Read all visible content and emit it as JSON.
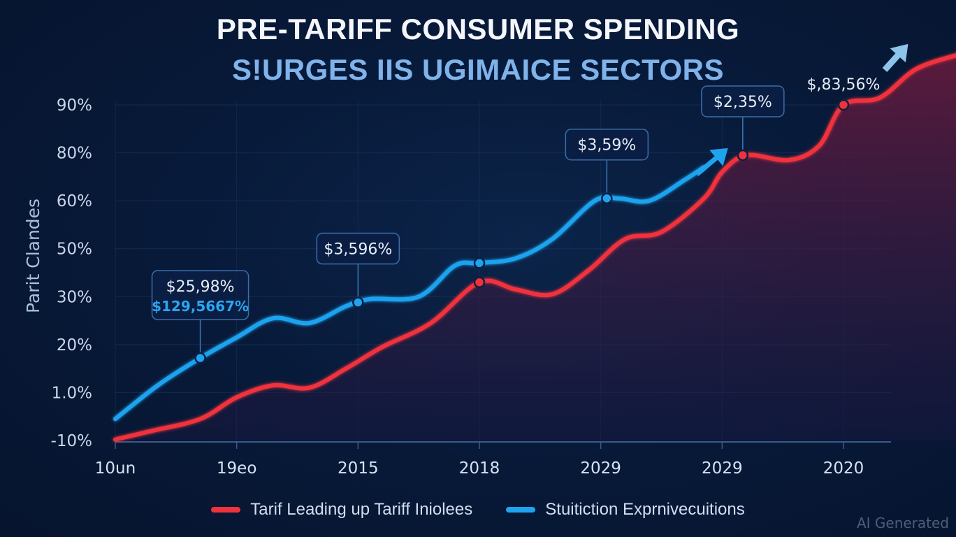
{
  "chart_data": {
    "type": "line",
    "title": "PRE-TARIFF CONSUMER SPENDING",
    "subtitle": "S!URGES IIS UGIMAICE SECTORS",
    "ylabel": "Parit Clandes",
    "xlabel": "",
    "x_tick_labels": [
      "10un",
      "19eo",
      "2015",
      "2018",
      "2029",
      "2029",
      "2020"
    ],
    "y_tick_labels": [
      "-10%",
      "1.0%",
      "20%",
      "30%",
      "50%",
      "60%",
      "80%",
      "90%"
    ],
    "y_scale_note": "values below are in tick-index units (0 = '-10%' ... 7 = '90%'), since printed tick labels are unevenly valued but evenly spaced",
    "ylim": [
      0,
      7.3
    ],
    "xlim": [
      0,
      6.95
    ],
    "grid": true,
    "legend_position": "bottom",
    "series": [
      {
        "name": "Tarif Leading up Tariff Iniolees",
        "color": "#f0323c",
        "area_fill": true,
        "points": [
          [
            0.0,
            0.02
          ],
          [
            0.3,
            0.2
          ],
          [
            0.7,
            0.45
          ],
          [
            1.0,
            0.9
          ],
          [
            1.3,
            1.15
          ],
          [
            1.6,
            1.1
          ],
          [
            1.9,
            1.5
          ],
          [
            2.2,
            1.95
          ],
          [
            2.6,
            2.45
          ],
          [
            3.0,
            3.3
          ],
          [
            3.3,
            3.15
          ],
          [
            3.6,
            3.05
          ],
          [
            3.9,
            3.55
          ],
          [
            4.2,
            4.2
          ],
          [
            4.5,
            4.35
          ],
          [
            4.85,
            5.05
          ],
          [
            5.0,
            5.6
          ],
          [
            5.2,
            5.95
          ],
          [
            5.55,
            5.85
          ],
          [
            5.8,
            6.15
          ],
          [
            6.0,
            7.0
          ],
          [
            6.3,
            7.15
          ],
          [
            6.6,
            7.75
          ],
          [
            6.95,
            8.05
          ]
        ],
        "markers": [
          {
            "x": 3.0,
            "y": 3.3
          },
          {
            "x": 5.17,
            "y": 5.95
          },
          {
            "x": 6.0,
            "y": 7.0
          }
        ]
      },
      {
        "name": "Stuitiction Exprnivecuitions",
        "color": "#1fa3ef",
        "area_fill": false,
        "points": [
          [
            0.0,
            0.45
          ],
          [
            0.35,
            1.15
          ],
          [
            0.7,
            1.72
          ],
          [
            1.0,
            2.15
          ],
          [
            1.3,
            2.55
          ],
          [
            1.6,
            2.45
          ],
          [
            1.9,
            2.8
          ],
          [
            2.1,
            2.95
          ],
          [
            2.5,
            3.0
          ],
          [
            2.8,
            3.65
          ],
          [
            3.0,
            3.7
          ],
          [
            3.3,
            3.8
          ],
          [
            3.6,
            4.2
          ],
          [
            3.95,
            5.0
          ],
          [
            4.15,
            5.05
          ],
          [
            4.4,
            5.0
          ],
          [
            4.7,
            5.45
          ],
          [
            4.85,
            5.7
          ]
        ],
        "markers": [
          {
            "x": 0.7,
            "y": 1.72
          },
          {
            "x": 2.0,
            "y": 2.88
          },
          {
            "x": 3.0,
            "y": 3.7
          },
          {
            "x": 4.05,
            "y": 5.05
          }
        ]
      }
    ],
    "annotations": [
      {
        "text": "$25,98%",
        "subtext": "$129,5667%",
        "series": "blue",
        "anchor_x": 0.7,
        "anchor_y": 1.72,
        "boxed": true
      },
      {
        "text": "$3,596%",
        "series": "blue",
        "anchor_x": 2.0,
        "anchor_y": 2.88,
        "boxed": true
      },
      {
        "text": "$3,59%",
        "series": "blue",
        "anchor_x": 4.05,
        "anchor_y": 5.05,
        "boxed": true
      },
      {
        "text": "$2,35%",
        "series": "red",
        "anchor_x": 5.17,
        "anchor_y": 5.95,
        "boxed": true
      },
      {
        "text": "$,83,56%",
        "series": "red",
        "anchor_x": 6.0,
        "anchor_y": 7.0,
        "boxed": false
      }
    ],
    "arrows": [
      {
        "color": "#1fa3ef",
        "direction": "up-right",
        "near": "end of blue series"
      },
      {
        "color": "#8cc4ec",
        "direction": "up-right",
        "near": "top-right corner"
      }
    ]
  },
  "legend": [
    {
      "label": "Tarif Leading up Tariff Iniolees",
      "color": "#f0323c"
    },
    {
      "label": "Stuitiction Exprnivecuitions",
      "color": "#1fa3ef"
    }
  ],
  "watermark": "AI Generated"
}
